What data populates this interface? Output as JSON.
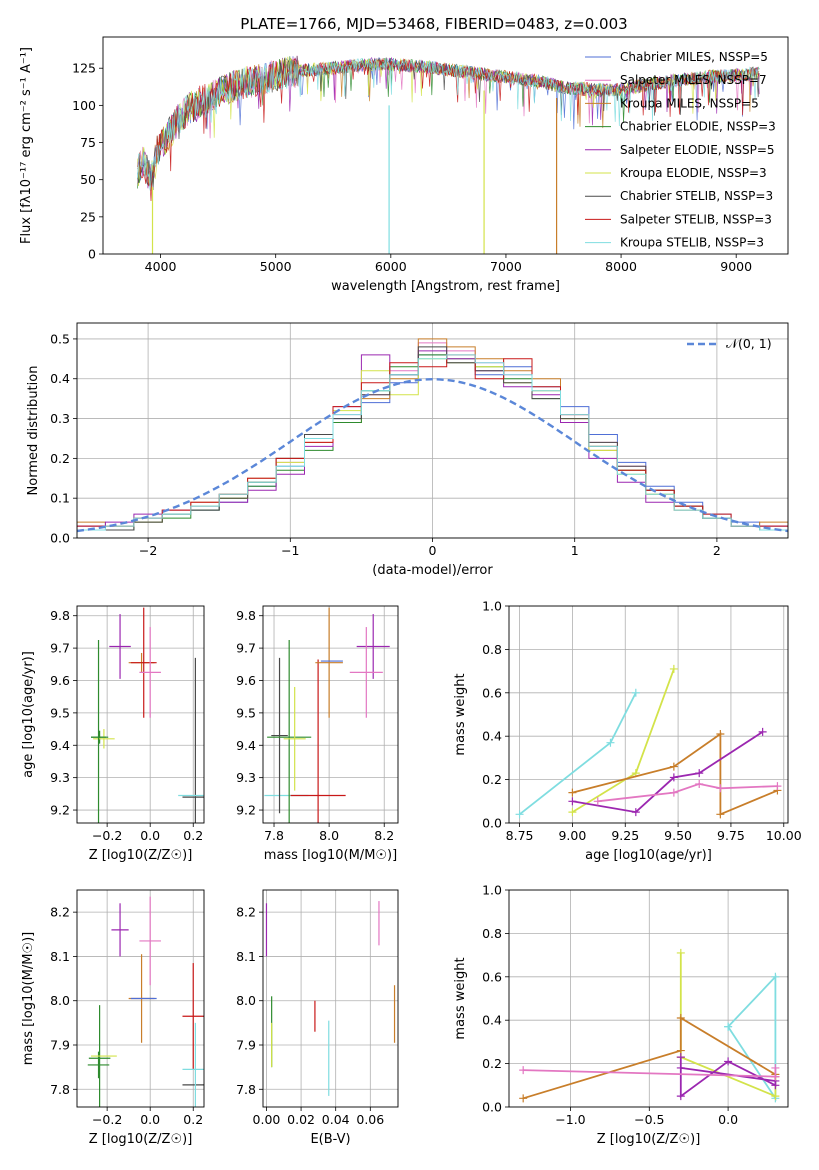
{
  "figure_title": "PLATE=1766, MJD=53468, FIBERID=0483, z=0.003",
  "colors": {
    "fit_0": "#4f6fd6",
    "fit_1": "#e377c2",
    "fit_2": "#c87e2a",
    "fit_3": "#2e8b2e",
    "fit_4": "#9b27b0",
    "fit_5": "#d3e34a",
    "fit_6": "#4a4a4a",
    "fit_7": "#c81818",
    "fit_8": "#7fdde0",
    "normal": "#5b87d8",
    "grid": "#b0b0b0"
  },
  "chart_data": [
    {
      "type": "line",
      "title": "PLATE=1766, MJD=53468, FIBERID=0483, z=0.003",
      "xlabel": "wavelength [Angstrom, rest frame]",
      "ylabel": "Flux [fλ10⁻¹⁷ erg cm⁻² s⁻¹ A⁻¹]",
      "xlim": [
        3500,
        9450
      ],
      "ylim": [
        0,
        146
      ],
      "xticks": [
        4000,
        5000,
        6000,
        7000,
        8000,
        9000
      ],
      "yticks": [
        0,
        25,
        50,
        75,
        100,
        125
      ],
      "grid": false,
      "legend": "top-right",
      "spectrum_x": [
        3800,
        3850,
        3920,
        3970,
        4050,
        4150,
        4250,
        4350,
        4500,
        4700,
        4900,
        5100,
        5300,
        5500,
        5700,
        5900,
        6100,
        6300,
        6500,
        6700,
        6900,
        7100,
        7300,
        7500,
        7700,
        7900,
        8100,
        8300,
        8500,
        8700,
        8900,
        9100,
        9200
      ],
      "spectrum_y": [
        55,
        62,
        50,
        70,
        78,
        90,
        98,
        103,
        108,
        115,
        118,
        122,
        124,
        125,
        127,
        128,
        127,
        126,
        124,
        122,
        120,
        118,
        116,
        112,
        111,
        110,
        112,
        115,
        117,
        119,
        120,
        121,
        122
      ],
      "series": [
        {
          "name": "Chabrier MILES, NSSP=5"
        },
        {
          "name": "Salpeter MILES, NSSP=7"
        },
        {
          "name": "Kroupa MILES, NSSP=5"
        },
        {
          "name": "Chabrier ELODIE, NSSP=3"
        },
        {
          "name": "Salpeter ELODIE, NSSP=5"
        },
        {
          "name": "Kroupa ELODIE, NSSP=3"
        },
        {
          "name": "Chabrier STELIB, NSSP=3"
        },
        {
          "name": "Salpeter STELIB, NSSP=3"
        },
        {
          "name": "Kroupa STELIB, NSSP=3"
        }
      ],
      "annotations": [
        {
          "x": 3930,
          "y_top": 45,
          "y_bottom": 0
        },
        {
          "x": 5985,
          "y_top": 100,
          "y_bottom": 0
        },
        {
          "x": 6810,
          "y_top": 110,
          "y_bottom": 0
        },
        {
          "x": 7440,
          "y_top": 105,
          "y_bottom": 0
        }
      ]
    },
    {
      "type": "bar",
      "xlabel": "(data-model)/error",
      "ylabel": "Normed distribution",
      "xlim": [
        -2.5,
        2.5
      ],
      "ylim": [
        0,
        0.54
      ],
      "xticks": [
        -2,
        -1,
        0,
        1,
        2
      ],
      "yticks": [
        0.0,
        0.1,
        0.2,
        0.3,
        0.4,
        0.5
      ],
      "grid": true,
      "legend": "top-right",
      "normal_label": "𝒩(0, 1)",
      "bin_edges": [
        -2.5,
        -2.3,
        -2.1,
        -1.9,
        -1.7,
        -1.5,
        -1.3,
        -1.1,
        -0.9,
        -0.7,
        -0.5,
        -0.3,
        -0.1,
        0.1,
        0.3,
        0.5,
        0.7,
        0.9,
        1.1,
        1.3,
        1.5,
        1.7,
        1.9,
        2.1,
        2.3,
        2.5
      ],
      "hist_series": [
        {
          "values": [
            0.03,
            0.03,
            0.05,
            0.06,
            0.07,
            0.09,
            0.13,
            0.18,
            0.25,
            0.3,
            0.34,
            0.39,
            0.46,
            0.44,
            0.41,
            0.43,
            0.38,
            0.33,
            0.26,
            0.19,
            0.13,
            0.09,
            0.06,
            0.04,
            0.03
          ]
        },
        {
          "values": [
            0.02,
            0.03,
            0.04,
            0.06,
            0.08,
            0.1,
            0.14,
            0.19,
            0.26,
            0.31,
            0.36,
            0.42,
            0.49,
            0.47,
            0.44,
            0.41,
            0.37,
            0.31,
            0.24,
            0.18,
            0.12,
            0.08,
            0.05,
            0.03,
            0.02
          ]
        },
        {
          "values": [
            0.04,
            0.03,
            0.05,
            0.07,
            0.09,
            0.11,
            0.15,
            0.2,
            0.24,
            0.29,
            0.35,
            0.4,
            0.5,
            0.48,
            0.45,
            0.42,
            0.4,
            0.3,
            0.22,
            0.17,
            0.11,
            0.07,
            0.05,
            0.03,
            0.04
          ]
        },
        {
          "values": [
            0.02,
            0.02,
            0.04,
            0.05,
            0.07,
            0.1,
            0.13,
            0.17,
            0.22,
            0.29,
            0.37,
            0.43,
            0.46,
            0.45,
            0.43,
            0.4,
            0.35,
            0.29,
            0.23,
            0.17,
            0.12,
            0.08,
            0.05,
            0.03,
            0.02
          ]
        },
        {
          "values": [
            0.03,
            0.04,
            0.06,
            0.07,
            0.08,
            0.09,
            0.12,
            0.16,
            0.23,
            0.33,
            0.46,
            0.41,
            0.47,
            0.45,
            0.42,
            0.38,
            0.36,
            0.29,
            0.2,
            0.14,
            0.09,
            0.07,
            0.05,
            0.03,
            0.03
          ]
        },
        {
          "values": [
            0.02,
            0.03,
            0.04,
            0.06,
            0.08,
            0.1,
            0.14,
            0.19,
            0.25,
            0.32,
            0.42,
            0.36,
            0.45,
            0.44,
            0.43,
            0.39,
            0.37,
            0.3,
            0.22,
            0.16,
            0.11,
            0.07,
            0.05,
            0.03,
            0.02
          ]
        },
        {
          "values": [
            0.02,
            0.02,
            0.04,
            0.06,
            0.07,
            0.1,
            0.14,
            0.2,
            0.26,
            0.3,
            0.36,
            0.41,
            0.48,
            0.44,
            0.42,
            0.39,
            0.35,
            0.3,
            0.24,
            0.18,
            0.12,
            0.08,
            0.05,
            0.03,
            0.02
          ]
        },
        {
          "values": [
            0.03,
            0.03,
            0.05,
            0.07,
            0.09,
            0.11,
            0.15,
            0.2,
            0.24,
            0.33,
            0.39,
            0.44,
            0.43,
            0.46,
            0.4,
            0.45,
            0.38,
            0.31,
            0.23,
            0.17,
            0.12,
            0.08,
            0.06,
            0.03,
            0.03
          ]
        },
        {
          "values": [
            0.02,
            0.03,
            0.05,
            0.06,
            0.08,
            0.11,
            0.14,
            0.18,
            0.25,
            0.31,
            0.37,
            0.41,
            0.45,
            0.46,
            0.44,
            0.41,
            0.37,
            0.31,
            0.23,
            0.16,
            0.11,
            0.07,
            0.05,
            0.03,
            0.02
          ]
        }
      ]
    },
    {
      "type": "scatter",
      "xlabel": "Z [log10(Z/Z☉)]",
      "ylabel": "age  [log10(age/yr)]",
      "xlim": [
        -0.34,
        0.25
      ],
      "ylim": [
        9.16,
        9.83
      ],
      "xticks": [
        -0.2,
        0.0,
        0.2
      ],
      "yticks": [
        9.2,
        9.3,
        9.4,
        9.5,
        9.6,
        9.7,
        9.8
      ],
      "grid": true,
      "points": [
        {
          "x": -0.235,
          "y": 9.425,
          "xerr": 0.04,
          "yerr": 0.02,
          "series": 3
        },
        {
          "x": -0.215,
          "y": 9.42,
          "xerr": 0.05,
          "yerr": 0.03,
          "series": 5
        },
        {
          "x": -0.24,
          "y": 9.425,
          "xerr": 0.035,
          "yerr": 0.3,
          "series": 3
        },
        {
          "x": -0.14,
          "y": 9.705,
          "xerr": 0.05,
          "yerr": 0.1,
          "series": 4
        },
        {
          "x": -0.04,
          "y": 9.655,
          "xerr": 0.06,
          "yerr": 0.03,
          "series": 2
        },
        {
          "x": -0.03,
          "y": 9.655,
          "xerr": 0.06,
          "yerr": 0.17,
          "series": 7
        },
        {
          "x": 0.0,
          "y": 9.625,
          "xerr": 0.05,
          "yerr": 0.14,
          "series": 1
        },
        {
          "x": 0.21,
          "y": 9.24,
          "xerr": 0.06,
          "yerr": 0.43,
          "series": 6
        },
        {
          "x": 0.2,
          "y": 9.245,
          "xerr": 0.07,
          "yerr": 0.0,
          "series": 8
        }
      ]
    },
    {
      "type": "scatter",
      "xlabel": "mass [log10(M/M☉)]",
      "ylabel": "",
      "xlim": [
        7.76,
        8.25
      ],
      "ylim": [
        9.16,
        9.83
      ],
      "xticks": [
        7.8,
        8.0,
        8.2
      ],
      "yticks": [
        9.2,
        9.3,
        9.4,
        9.5,
        9.6,
        9.7,
        9.8
      ],
      "grid": true,
      "points": [
        {
          "x": 7.845,
          "y": 9.245,
          "xerr": 0.08,
          "yerr": 0.0,
          "series": 8
        },
        {
          "x": 7.82,
          "y": 9.43,
          "xerr": 0.03,
          "yerr": 0.24,
          "series": 6
        },
        {
          "x": 7.855,
          "y": 9.425,
          "xerr": 0.08,
          "yerr": 0.3,
          "series": 3
        },
        {
          "x": 7.875,
          "y": 9.42,
          "xerr": 0.04,
          "yerr": 0.16,
          "series": 5
        },
        {
          "x": 7.96,
          "y": 9.245,
          "xerr": 0.1,
          "yerr": 0.42,
          "series": 7
        },
        {
          "x": 8.0,
          "y": 9.655,
          "xerr": 0.05,
          "yerr": 0.17,
          "series": 2
        },
        {
          "x": 8.01,
          "y": 9.66,
          "xerr": 0.04,
          "yerr": 0.0,
          "series": 0
        },
        {
          "x": 8.16,
          "y": 9.705,
          "xerr": 0.06,
          "yerr": 0.1,
          "series": 4
        },
        {
          "x": 8.135,
          "y": 9.625,
          "xerr": 0.06,
          "yerr": 0.14,
          "series": 1
        }
      ]
    },
    {
      "type": "line",
      "xlabel": "age  [log10(age/yr)]",
      "ylabel": "mass weight",
      "xlim": [
        8.7,
        10.02
      ],
      "ylim": [
        0,
        1.0
      ],
      "xticks": [
        8.75,
        9.0,
        9.25,
        9.5,
        9.75,
        10.0
      ],
      "yticks": [
        0.0,
        0.2,
        0.4,
        0.6,
        0.8,
        1.0
      ],
      "grid": true,
      "series": [
        {
          "series": 8,
          "x": [
            8.75,
            9.18,
            9.3
          ],
          "y": [
            0.04,
            0.37,
            0.6
          ]
        },
        {
          "series": 5,
          "x": [
            9.0,
            9.3,
            9.48
          ],
          "y": [
            0.05,
            0.23,
            0.71
          ]
        },
        {
          "series": 2,
          "x": [
            9.0,
            9.48,
            9.7,
            9.7,
            9.97
          ],
          "y": [
            0.14,
            0.26,
            0.41,
            0.04,
            0.15
          ]
        },
        {
          "series": 4,
          "x": [
            9.0,
            9.3,
            9.48,
            9.6,
            9.9
          ],
          "y": [
            0.1,
            0.05,
            0.21,
            0.23,
            0.42
          ]
        },
        {
          "series": 1,
          "x": [
            9.12,
            9.48,
            9.6,
            9.7,
            9.97
          ],
          "y": [
            0.1,
            0.14,
            0.18,
            0.16,
            0.17
          ]
        }
      ]
    },
    {
      "type": "scatter",
      "xlabel": "Z [log10(Z/Z☉)]",
      "ylabel": "mass [log10(M/M☉)]",
      "xlim": [
        -0.34,
        0.25
      ],
      "ylim": [
        7.76,
        8.25
      ],
      "xticks": [
        -0.2,
        0.0,
        0.2
      ],
      "yticks": [
        7.8,
        7.9,
        8.0,
        8.1,
        8.2
      ],
      "grid": true,
      "points": [
        {
          "x": -0.24,
          "y": 7.855,
          "xerr": 0.05,
          "yerr": 0.03,
          "series": 3
        },
        {
          "x": -0.235,
          "y": 7.87,
          "xerr": 0.05,
          "yerr": 0.12,
          "series": 3
        },
        {
          "x": -0.215,
          "y": 7.875,
          "xerr": 0.06,
          "yerr": 0.0,
          "series": 5
        },
        {
          "x": -0.14,
          "y": 8.16,
          "xerr": 0.04,
          "yerr": 0.06,
          "series": 4
        },
        {
          "x": -0.04,
          "y": 8.005,
          "xerr": 0.06,
          "yerr": 0.1,
          "series": 2
        },
        {
          "x": -0.03,
          "y": 8.005,
          "xerr": 0.06,
          "yerr": 0.0,
          "series": 0
        },
        {
          "x": 0.0,
          "y": 8.135,
          "xerr": 0.05,
          "yerr": 0.1,
          "series": 1
        },
        {
          "x": 0.2,
          "y": 7.965,
          "xerr": 0.05,
          "yerr": 0.12,
          "series": 7
        },
        {
          "x": 0.21,
          "y": 7.81,
          "xerr": 0.06,
          "yerr": 0.0,
          "series": 6
        },
        {
          "x": 0.2,
          "y": 7.845,
          "xerr": 0.05,
          "yerr": 0.0,
          "series": 8
        },
        {
          "x": 0.21,
          "y": 7.85,
          "xerr": 0.0,
          "yerr": 0.1,
          "series": 8
        }
      ]
    },
    {
      "type": "scatter",
      "xlabel": "E(B-V)",
      "ylabel": "",
      "xlim": [
        -0.002,
        0.076
      ],
      "ylim": [
        7.76,
        8.25
      ],
      "xticks": [
        0.0,
        0.02,
        0.04,
        0.06
      ],
      "yticks": [
        7.8,
        7.9,
        8.0,
        8.1,
        8.2
      ],
      "grid": true,
      "points": [
        {
          "x": 0.0,
          "y": 8.16,
          "xerr": 0.0,
          "yerr": 0.06,
          "series": 4
        },
        {
          "x": 0.003,
          "y": 7.93,
          "xerr": 0.0,
          "yerr": 0.08,
          "series": 3
        },
        {
          "x": 0.003,
          "y": 7.9,
          "xerr": 0.0,
          "yerr": 0.05,
          "series": 5
        },
        {
          "x": 0.028,
          "y": 7.965,
          "xerr": 0.0,
          "yerr": 0.035,
          "series": 7
        },
        {
          "x": 0.036,
          "y": 7.87,
          "xerr": 0.0,
          "yerr": 0.085,
          "series": 8
        },
        {
          "x": 0.065,
          "y": 8.175,
          "xerr": 0.0,
          "yerr": 0.05,
          "series": 1
        },
        {
          "x": 0.074,
          "y": 7.97,
          "xerr": 0.0,
          "yerr": 0.065,
          "series": 2
        }
      ]
    },
    {
      "type": "line",
      "xlabel": "Z [log10(Z/Z☉)]",
      "ylabel": "mass weight",
      "xlim": [
        -1.39,
        0.38
      ],
      "ylim": [
        0,
        1.0
      ],
      "xticks": [
        -1.0,
        -0.5,
        0.0
      ],
      "yticks": [
        0.0,
        0.2,
        0.4,
        0.6,
        0.8,
        1.0
      ],
      "grid": true,
      "series": [
        {
          "series": 8,
          "x": [
            0.0,
            0.3,
            0.3,
            0.0
          ],
          "y": [
            0.37,
            0.6,
            0.04,
            0.37
          ]
        },
        {
          "series": 5,
          "x": [
            -0.3,
            -0.3,
            -0.3,
            0.3,
            0.3
          ],
          "y": [
            0.71,
            0.23,
            0.23,
            0.05,
            0.15
          ]
        },
        {
          "series": 2,
          "x": [
            -1.3,
            -0.3,
            -0.3,
            0.3,
            0.3
          ],
          "y": [
            0.04,
            0.26,
            0.41,
            0.15,
            0.14
          ]
        },
        {
          "series": 4,
          "x": [
            -0.3,
            -0.3,
            0.0,
            0.3,
            0.3,
            -0.3
          ],
          "y": [
            0.23,
            0.05,
            0.21,
            0.1,
            0.12,
            0.18
          ]
        },
        {
          "series": 1,
          "x": [
            -1.3,
            0.3,
            0.3
          ],
          "y": [
            0.17,
            0.14,
            0.18
          ]
        }
      ]
    }
  ]
}
